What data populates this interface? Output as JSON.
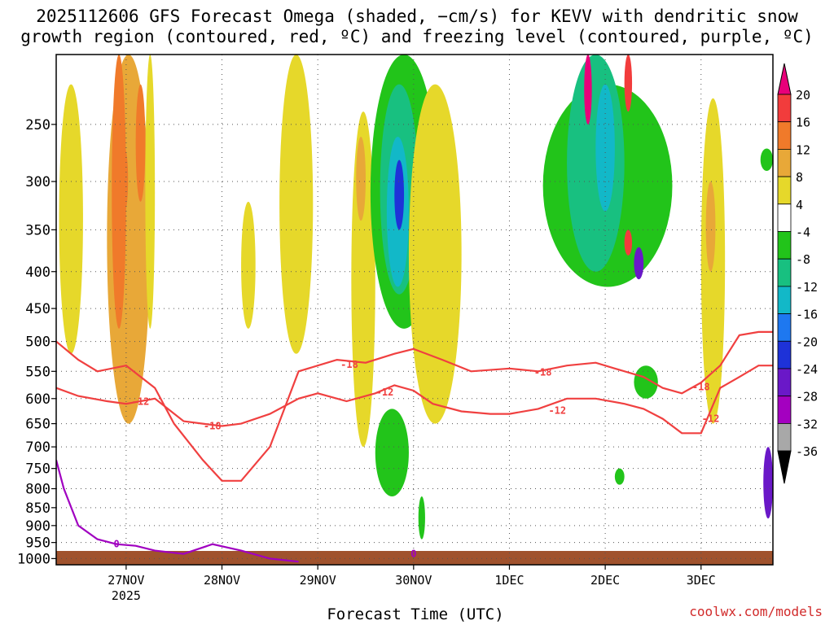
{
  "title_line1": "2025112606 GFS Forecast Omega (shaded, −cm/s) for KEVV with dendritic snow",
  "title_line2": "growth region (contoured, red, ºC) and freezing level (contoured, purple, ºC)",
  "credit": "coolwx.com/models",
  "chart_data": {
    "type": "heatmap",
    "xlabel": "Forecast Time (UTC)",
    "ylabel": "",
    "x_ticks": [
      "27NOV",
      "28NOV",
      "29NOV",
      "30NOV",
      "1DEC",
      "2DEC",
      "3DEC"
    ],
    "x_sub_label": "2025",
    "x_tick_values": [
      1,
      2,
      3,
      4,
      5,
      6,
      7
    ],
    "xlim": [
      0.27,
      7.75
    ],
    "y_ticks": [
      250,
      300,
      350,
      400,
      450,
      500,
      550,
      600,
      650,
      700,
      750,
      800,
      850,
      900,
      950,
      1000
    ],
    "ylim": [
      1020,
      200
    ],
    "y_scale": "log-pressure",
    "grid": true,
    "colorbar": {
      "labels": [
        "20",
        "16",
        "12",
        "8",
        "4",
        "-4",
        "-8",
        "-12",
        "-16",
        "-20",
        "-24",
        "-28",
        "-32",
        "-36"
      ],
      "colors": [
        "#e8007a",
        "#f23c3c",
        "#f07a2a",
        "#e8a838",
        "#e6d82a",
        "#ffffff",
        "#22c41a",
        "#18c080",
        "#12b8c8",
        "#1e78f0",
        "#1e32d8",
        "#6a18c8",
        "#a400c0",
        "#a8a8a8",
        "#000000"
      ]
    },
    "shaded_regions": [
      {
        "value": 6,
        "x": [
          0.3,
          0.55
        ],
        "p": [
          220,
          520
        ]
      },
      {
        "value": 8,
        "x": [
          0.8,
          1.25
        ],
        "p": [
          200,
          650
        ]
      },
      {
        "value": 12,
        "x": [
          0.85,
          1.0
        ],
        "p": [
          200,
          480
        ]
      },
      {
        "value": 14,
        "x": [
          0.95,
          1.02
        ],
        "p": [
          270,
          330
        ]
      },
      {
        "value": 12,
        "x": [
          1.1,
          1.2
        ],
        "p": [
          220,
          320
        ]
      },
      {
        "value": 6,
        "x": [
          1.2,
          1.3
        ],
        "p": [
          200,
          480
        ]
      },
      {
        "value": 6,
        "x": [
          2.2,
          2.35
        ],
        "p": [
          320,
          480
        ]
      },
      {
        "value": 6,
        "x": [
          2.6,
          2.95
        ],
        "p": [
          200,
          520
        ]
      },
      {
        "value": 6,
        "x": [
          3.35,
          3.6
        ],
        "p": [
          240,
          700
        ]
      },
      {
        "value": 10,
        "x": [
          3.4,
          3.5
        ],
        "p": [
          260,
          340
        ]
      },
      {
        "value": -8,
        "x": [
          3.55,
          4.25
        ],
        "p": [
          200,
          480
        ]
      },
      {
        "value": -12,
        "x": [
          3.65,
          4.05
        ],
        "p": [
          220,
          430
        ]
      },
      {
        "value": -16,
        "x": [
          3.72,
          3.95
        ],
        "p": [
          260,
          420
        ]
      },
      {
        "value": -24,
        "x": [
          3.8,
          3.9
        ],
        "p": [
          280,
          350
        ]
      },
      {
        "value": -8,
        "x": [
          3.6,
          3.95
        ],
        "p": [
          620,
          820
        ]
      },
      {
        "value": 6,
        "x": [
          3.95,
          4.5
        ],
        "p": [
          220,
          650
        ]
      },
      {
        "value": -8,
        "x": [
          4.05,
          4.12
        ],
        "p": [
          820,
          940
        ]
      },
      {
        "value": -8,
        "x": [
          5.35,
          6.7
        ],
        "p": [
          220,
          420
        ]
      },
      {
        "value": -12,
        "x": [
          5.6,
          6.2
        ],
        "p": [
          200,
          400
        ]
      },
      {
        "value": -16,
        "x": [
          5.9,
          6.1
        ],
        "p": [
          220,
          330
        ]
      },
      {
        "value": 20,
        "x": [
          5.78,
          5.86
        ],
        "p": [
          200,
          250
        ]
      },
      {
        "value": 16,
        "x": [
          6.2,
          6.28
        ],
        "p": [
          200,
          240
        ]
      },
      {
        "value": 16,
        "x": [
          6.2,
          6.28
        ],
        "p": [
          350,
          380
        ]
      },
      {
        "value": -28,
        "x": [
          6.3,
          6.4
        ],
        "p": [
          370,
          410
        ]
      },
      {
        "value": -8,
        "x": [
          6.3,
          6.55
        ],
        "p": [
          540,
          600
        ]
      },
      {
        "value": -8,
        "x": [
          6.1,
          6.2
        ],
        "p": [
          750,
          790
        ]
      },
      {
        "value": 6,
        "x": [
          7.0,
          7.25
        ],
        "p": [
          230,
          650
        ]
      },
      {
        "value": 10,
        "x": [
          7.05,
          7.15
        ],
        "p": [
          300,
          400
        ]
      },
      {
        "value": -8,
        "x": [
          7.62,
          7.75
        ],
        "p": [
          270,
          290
        ]
      },
      {
        "value": -28,
        "x": [
          7.65,
          7.75
        ],
        "p": [
          700,
          880
        ]
      }
    ],
    "series": [
      {
        "name": "-18",
        "color": "#f04040",
        "x": [
          0.27,
          0.5,
          0.7,
          1.0,
          1.3,
          1.5,
          1.8,
          2.0,
          2.2,
          2.5,
          2.8,
          3.0,
          3.2,
          3.5,
          3.8,
          4.0,
          4.3,
          4.6,
          5.0,
          5.3,
          5.6,
          5.9,
          6.1,
          6.4,
          6.6,
          6.8,
          7.0,
          7.2,
          7.4,
          7.6,
          7.75
        ],
        "p": [
          500,
          530,
          550,
          540,
          580,
          650,
          730,
          780,
          780,
          700,
          550,
          540,
          530,
          535,
          520,
          512,
          530,
          550,
          545,
          550,
          540,
          535,
          545,
          560,
          580,
          590,
          570,
          540,
          490,
          485,
          485
        ]
      },
      {
        "name": "-12",
        "color": "#f04040",
        "x": [
          0.27,
          0.5,
          0.8,
          1.0,
          1.3,
          1.6,
          1.8,
          2.0,
          2.2,
          2.5,
          2.8,
          3.0,
          3.3,
          3.6,
          3.8,
          4.0,
          4.2,
          4.5,
          4.8,
          5.0,
          5.3,
          5.6,
          5.9,
          6.2,
          6.4,
          6.6,
          6.8,
          7.0,
          7.2,
          7.4,
          7.6,
          7.75
        ],
        "p": [
          580,
          595,
          605,
          610,
          600,
          645,
          650,
          655,
          650,
          630,
          600,
          590,
          605,
          590,
          575,
          585,
          610,
          625,
          630,
          630,
          620,
          600,
          600,
          610,
          620,
          640,
          670,
          670,
          580,
          560,
          540,
          540
        ]
      },
      {
        "name": "0",
        "color": "#a000c0",
        "x": [
          0.27,
          0.35,
          0.5,
          0.7,
          0.9,
          1.1,
          1.3,
          1.6,
          1.9,
          2.2,
          2.5,
          2.8
        ],
        "p": [
          730,
          800,
          900,
          940,
          955,
          960,
          975,
          985,
          955,
          975,
          1000,
          1010
        ]
      }
    ],
    "contour_labels": [
      {
        "text": "-12",
        "x": 1.15,
        "p": 606
      },
      {
        "text": "-18",
        "x": 1.9,
        "p": 655
      },
      {
        "text": "-18",
        "x": 3.33,
        "p": 538
      },
      {
        "text": "-12",
        "x": 3.7,
        "p": 588
      },
      {
        "text": "-18",
        "x": 5.35,
        "p": 552
      },
      {
        "text": "-12",
        "x": 5.5,
        "p": 623
      },
      {
        "text": "-18",
        "x": 7.0,
        "p": 578
      },
      {
        "text": "-12",
        "x": 7.1,
        "p": 640
      },
      {
        "text": "0",
        "x": 0.9,
        "p": 955
      },
      {
        "text": "0",
        "x": 4.0,
        "p": 985
      }
    ]
  }
}
